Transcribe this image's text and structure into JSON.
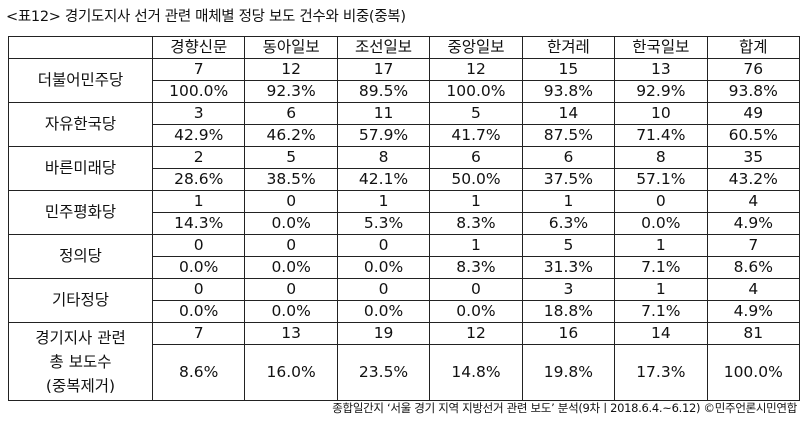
{
  "title": "<표12> 경기도지사 선거 관련 매체별 정당 보도 건수와 비중(중복)",
  "columns": [
    "경향신문",
    "동아일보",
    "조선일보",
    "중앙일보",
    "한겨레",
    "한국일보",
    "합계"
  ],
  "rows": [
    {
      "party": "더불어민주당",
      "counts": [
        "7",
        "12",
        "17",
        "12",
        "15",
        "13",
        "76"
      ],
      "shares": [
        "100.0%",
        "92.3%",
        "89.5%",
        "100.0%",
        "93.8%",
        "92.9%",
        "93.8%"
      ]
    },
    {
      "party": "자유한국당",
      "counts": [
        "3",
        "6",
        "11",
        "5",
        "14",
        "10",
        "49"
      ],
      "shares": [
        "42.9%",
        "46.2%",
        "57.9%",
        "41.7%",
        "87.5%",
        "71.4%",
        "60.5%"
      ]
    },
    {
      "party": "바른미래당",
      "counts": [
        "2",
        "5",
        "8",
        "6",
        "6",
        "8",
        "35"
      ],
      "shares": [
        "28.6%",
        "38.5%",
        "42.1%",
        "50.0%",
        "37.5%",
        "57.1%",
        "43.2%"
      ]
    },
    {
      "party": "민주평화당",
      "counts": [
        "1",
        "0",
        "1",
        "1",
        "1",
        "0",
        "4"
      ],
      "shares": [
        "14.3%",
        "0.0%",
        "5.3%",
        "8.3%",
        "6.3%",
        "0.0%",
        "4.9%"
      ]
    },
    {
      "party": "정의당",
      "counts": [
        "0",
        "0",
        "0",
        "1",
        "5",
        "1",
        "7"
      ],
      "shares": [
        "0.0%",
        "0.0%",
        "0.0%",
        "8.3%",
        "31.3%",
        "7.1%",
        "8.6%"
      ]
    },
    {
      "party": "기타정당",
      "counts": [
        "0",
        "0",
        "0",
        "0",
        "3",
        "1",
        "4"
      ],
      "shares": [
        "0.0%",
        "0.0%",
        "0.0%",
        "0.0%",
        "18.8%",
        "7.1%",
        "4.9%"
      ]
    }
  ],
  "total": {
    "label_lines": [
      "경기지사 관련",
      "총 보도수",
      "(중복제거)"
    ],
    "counts": [
      "7",
      "13",
      "19",
      "12",
      "16",
      "14",
      "81"
    ],
    "shares": [
      "8.6%",
      "16.0%",
      "23.5%",
      "14.8%",
      "19.8%",
      "17.3%",
      "100.0%"
    ]
  },
  "footer": "종합일간지 ‘서울 경기 지역 지방선거 관련 보도’ 분석(9차ㅣ2018.6.4.~6.12) ©민주언론시민연합"
}
